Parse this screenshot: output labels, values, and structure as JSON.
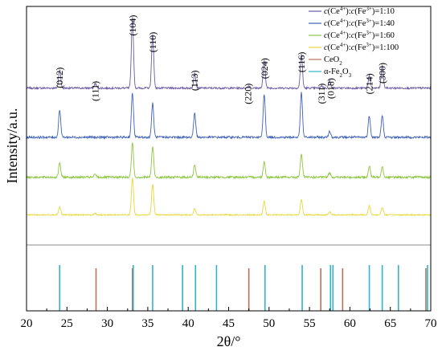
{
  "chart_data": {
    "type": "line",
    "title": "",
    "xlabel": "2θ/°",
    "ylabel": "Intensity/a.u.",
    "xlim": [
      20,
      70
    ],
    "x_ticks": [
      "20",
      "25",
      "30",
      "35",
      "40",
      "45",
      "50",
      "55",
      "60",
      "65",
      "70"
    ],
    "y_ticks": [],
    "grid": false,
    "legend_position": "top-right",
    "series": [
      {
        "name": "c(Ce⁴⁺):c(Fe³⁺)=1:10",
        "legend": {
          "c1": "c",
          "m1": "(Ce",
          "s1": "4+",
          "m2 ": "):",
          "c2": "c",
          "m3": "(Fe",
          "s2": "3+",
          "tail": ")=1:10"
        },
        "color": "#6b5aa6",
        "baseline": 1.0,
        "noise": 0.006,
        "peaks": [
          [
            24.1,
            0.12
          ],
          [
            28.5,
            0.03
          ],
          [
            33.1,
            0.46
          ],
          [
            35.6,
            0.35
          ],
          [
            40.8,
            0.1
          ],
          [
            47.5,
            0.015
          ],
          [
            49.4,
            0.18
          ],
          [
            54.0,
            0.22
          ],
          [
            56.5,
            0.015
          ],
          [
            57.5,
            0.05
          ],
          [
            62.4,
            0.08
          ],
          [
            64.0,
            0.15
          ]
        ]
      },
      {
        "name": "c(Ce⁴⁺):c(Fe³⁺)=1:40",
        "legend": {
          "c1": "c",
          "m1": "(Ce",
          "s1": "4+",
          "m2": "):",
          "c2": "c",
          "m3": "(Fe",
          "s2": "3+",
          "tail": ")=1:40"
        },
        "color": "#3f62b8",
        "baseline": 0.68,
        "noise": 0.007,
        "peaks": [
          [
            24.1,
            0.18
          ],
          [
            33.1,
            0.29
          ],
          [
            35.6,
            0.22
          ],
          [
            40.8,
            0.16
          ],
          [
            49.4,
            0.28
          ],
          [
            54.0,
            0.29
          ],
          [
            57.5,
            0.04
          ],
          [
            62.4,
            0.14
          ],
          [
            64.0,
            0.14
          ]
        ]
      },
      {
        "name": "c(Ce⁴⁺):c(Fe³⁺)=1:60",
        "legend": {
          "c1": "c",
          "m1": "(Ce",
          "s1": "4+",
          "m2": "):",
          "c2": "c",
          "m3": "(Fe",
          "s2": "3+",
          "tail": ")=1:60"
        },
        "color": "#8cc63f",
        "baseline": 0.42,
        "noise": 0.007,
        "peaks": [
          [
            24.1,
            0.09
          ],
          [
            28.5,
            0.02
          ],
          [
            33.1,
            0.22
          ],
          [
            35.6,
            0.2
          ],
          [
            40.8,
            0.08
          ],
          [
            49.4,
            0.1
          ],
          [
            54.0,
            0.15
          ],
          [
            57.5,
            0.03
          ],
          [
            62.4,
            0.07
          ],
          [
            64.0,
            0.07
          ]
        ]
      },
      {
        "name": "c(Ce⁴⁺):c(Fe³⁺)=1:100",
        "legend": {
          "c1": "c",
          "m1": "(Ce",
          "s1": "4+",
          "m2": "):",
          "c2": "c",
          "m3": "(Fe",
          "s2": "3+",
          "tail": ")=1:100"
        },
        "color": "#e6d93a",
        "baseline": 0.175,
        "noise": 0.004,
        "peaks": [
          [
            24.1,
            0.05
          ],
          [
            28.5,
            0.01
          ],
          [
            33.1,
            0.24
          ],
          [
            35.6,
            0.2
          ],
          [
            40.8,
            0.04
          ],
          [
            49.4,
            0.09
          ],
          [
            54.0,
            0.1
          ],
          [
            57.5,
            0.02
          ],
          [
            62.4,
            0.06
          ],
          [
            64.0,
            0.05
          ]
        ]
      }
    ],
    "reference_legend": [
      {
        "name": "CeO₂",
        "label": {
          "base": "CeO",
          "sub": "2"
        },
        "color": "#b5735a"
      },
      {
        "name": "α-Fe₂O₃",
        "label": {
          "pre": "α-Fe",
          "sub1": "2",
          "mid": "O",
          "sub2": "3"
        },
        "color": "#33b3c9"
      }
    ],
    "reference_lines": {
      "CeO2": [
        28.6,
        33.1,
        47.5,
        56.4,
        59.1,
        69.4
      ],
      "alpha_Fe2O3": [
        24.1,
        33.2,
        35.6,
        39.3,
        40.9,
        43.5,
        49.5,
        54.1,
        57.6,
        57.9,
        62.4,
        64.0,
        66.0,
        69.6
      ]
    },
    "annotations": [
      {
        "text": "(012)",
        "x": 24.1
      },
      {
        "text": "(111)",
        "x": 28.5
      },
      {
        "text": "(104)",
        "x": 33.1
      },
      {
        "text": "(110)",
        "x": 35.6
      },
      {
        "text": "(113)",
        "x": 40.8
      },
      {
        "text": "(220)",
        "x": 47.4
      },
      {
        "text": "(024)",
        "x": 49.4
      },
      {
        "text": "(116)",
        "x": 54.0
      },
      {
        "text": "(311)",
        "x": 56.5
      },
      {
        "text": "(018)",
        "x": 57.6
      },
      {
        "text": "(214)",
        "x": 62.4
      },
      {
        "text": "(300)",
        "x": 64.0
      }
    ]
  }
}
